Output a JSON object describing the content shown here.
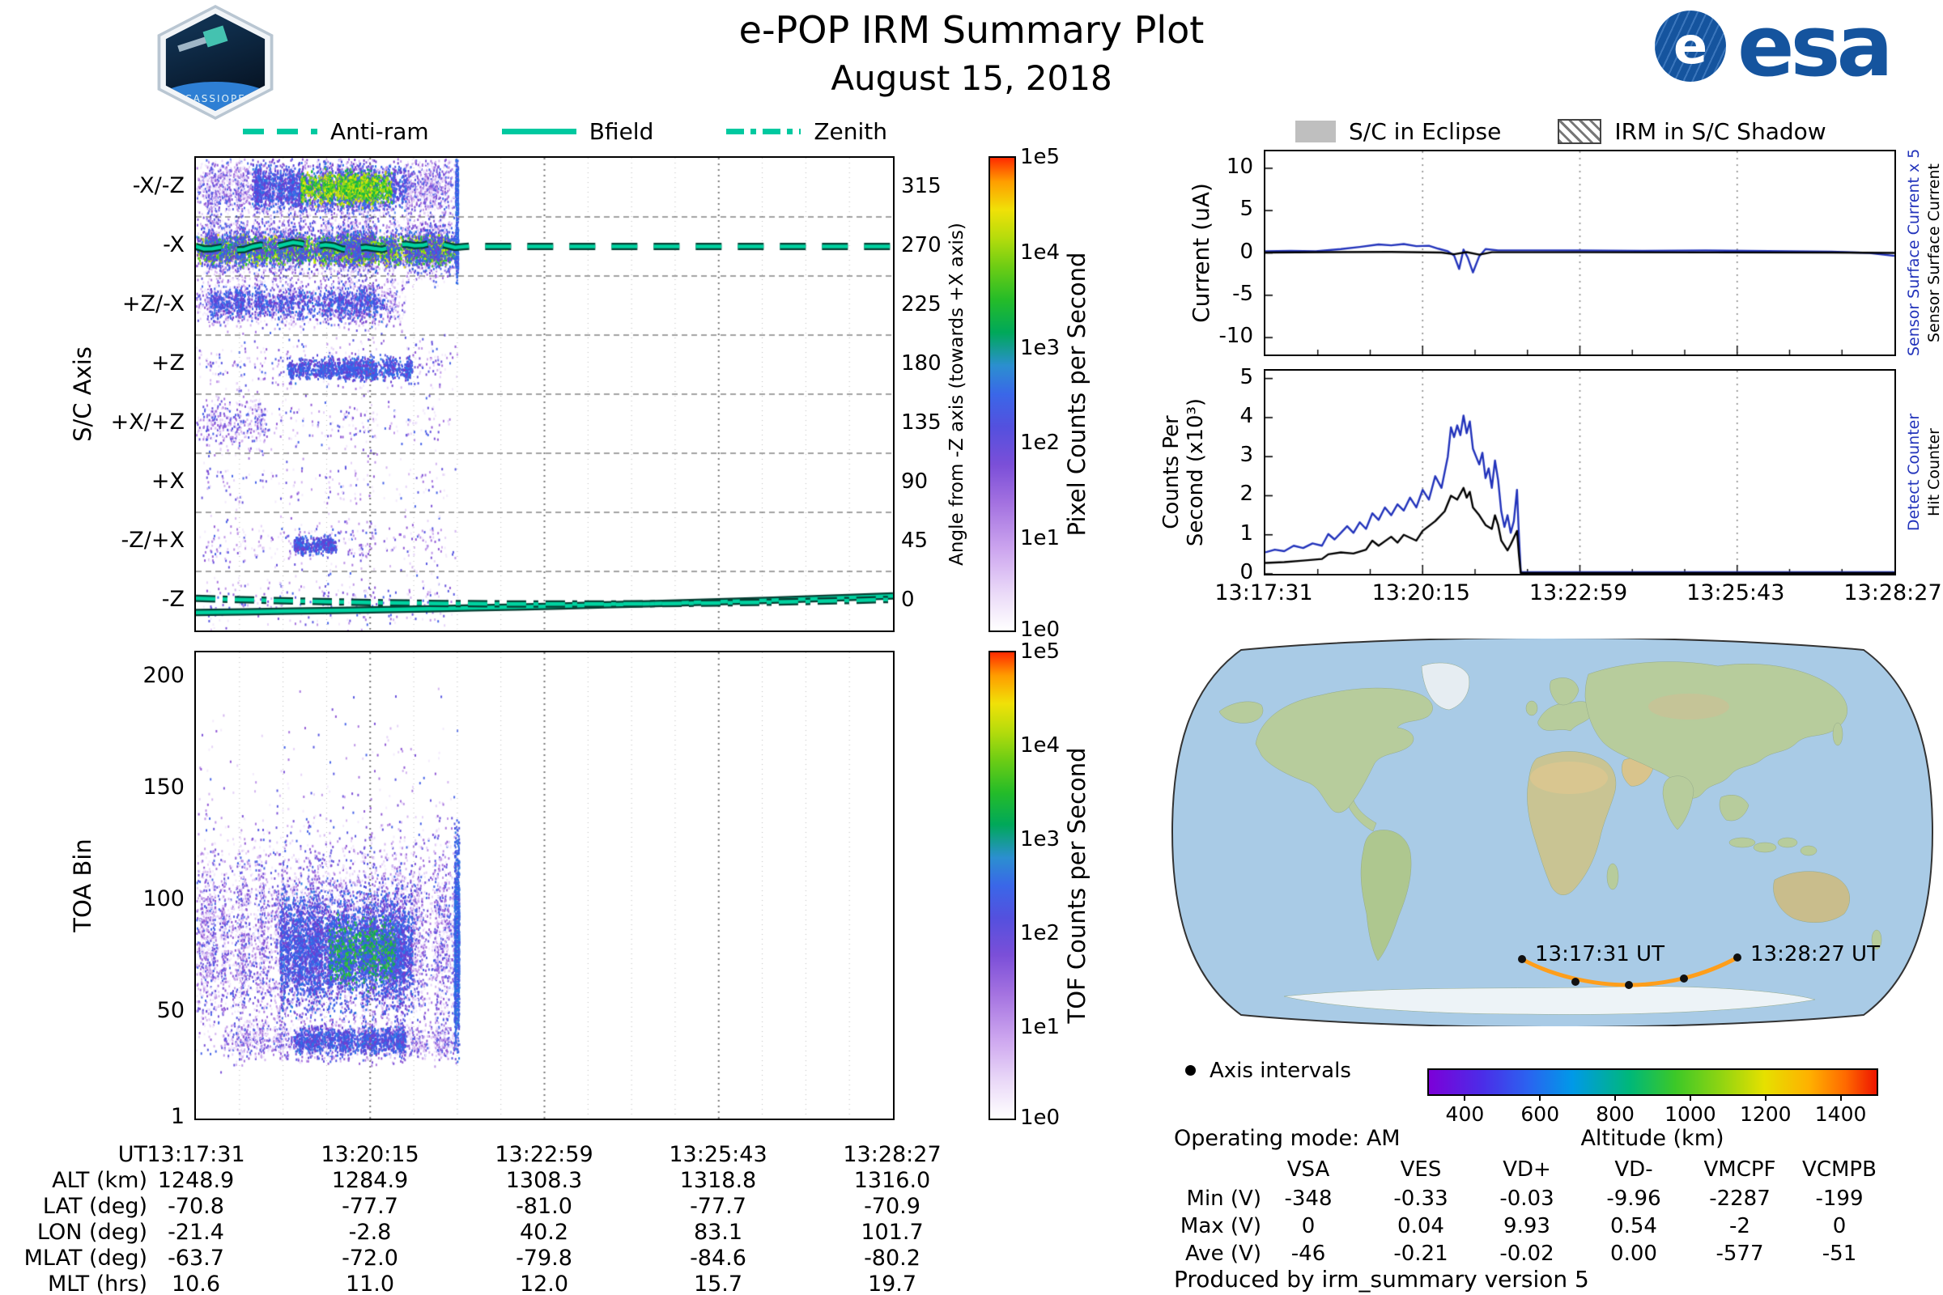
{
  "header": {
    "title": "e-POP IRM Summary Plot",
    "date": "August 15, 2018",
    "patch_text": "CASSIOPE",
    "esa_e": "e",
    "esa_text": "esa"
  },
  "colors": {
    "accent_teal": "#00c9a0",
    "track_orange": "#ff9e1b",
    "series_blue": "#2233bb",
    "series_black": "#000000",
    "eclipse_gray": "#bfbfbf"
  },
  "left_legend": [
    {
      "label": "Anti-ram",
      "style": "dashed"
    },
    {
      "label": "Bfield",
      "style": "solid"
    },
    {
      "label": "Zenith",
      "style": "dashdot"
    }
  ],
  "right_legend": {
    "eclipse": "S/C in Eclipse",
    "shadow": "IRM in S/C Shadow"
  },
  "time_ticks": [
    "13:17:31",
    "13:20:15",
    "13:22:59",
    "13:25:43",
    "13:28:27"
  ],
  "palettes": {
    "cool": [
      "#f3ebfc",
      "#e6d4f8",
      "#d4b6f0",
      "#bf97e8",
      "#a978df",
      "#935cd6",
      "#7e54d8",
      "#6b55dd",
      "#5a5ae2",
      "#4a66e8"
    ],
    "coolDark": [
      "#6a3fd0",
      "#5a48da",
      "#4a50e0",
      "#3c5ce8",
      "#2f6ae8",
      "#2b7ae0",
      "#7a40cc",
      "#3f63e6"
    ],
    "hot": [
      "#0fae4f",
      "#19bc3c",
      "#3cc829",
      "#66d41b",
      "#95dc12",
      "#c8e40c",
      "#e8e70a"
    ],
    "hotmix": [
      "#3c5ce8",
      "#2f6ae8",
      "#4a50e0",
      "#19bc3c",
      "#0fae4f",
      "#3cc829"
    ],
    "blue": [
      "#3c5ce8",
      "#2f6ae8",
      "#4a50e0",
      "#2b7ae0"
    ]
  },
  "chart_data": [
    {
      "id": "sc_axis_spectrogram",
      "type": "heatmap",
      "ylabel": "S/C Axis",
      "rows": [
        "-X/-Z",
        "-X",
        "+Z/-X",
        "+Z",
        "+X/+Z",
        "+X",
        "-Z/+X",
        "-Z"
      ],
      "right_axis": {
        "label": "Angle from -Z axis (towards +X axis)",
        "ticks": [
          "315",
          "270",
          "225",
          "180",
          "135",
          "90",
          "45",
          "0"
        ]
      },
      "colorbar": {
        "label": "Pixel Counts per Second",
        "ticks": [
          "1e5",
          "1e4",
          "1e3",
          "1e2",
          "1e1",
          "1e0"
        ]
      },
      "x_range": [
        "13:17:31",
        "13:28:27"
      ],
      "data_end_frac": 0.375,
      "overlays": [
        {
          "name": "Anti-ram",
          "style": "dashed",
          "row": "-X",
          "y_frac": 0.1875
        },
        {
          "name": "Bfield",
          "style": "solid",
          "path": [
            [
              0,
              0.962
            ],
            [
              0.55,
              0.952
            ],
            [
              1,
              0.927
            ]
          ]
        },
        {
          "name": "Zenith",
          "style": "dashdot",
          "path": [
            [
              0,
              0.932
            ],
            [
              0.5,
              0.955
            ],
            [
              1,
              0.934
            ]
          ]
        }
      ],
      "bands": [
        [
          0.0,
          0.375,
          0.0625,
          0.03,
          5200,
          "cool"
        ],
        [
          0.08,
          0.3,
          0.0625,
          0.022,
          3200,
          "coolDark"
        ],
        [
          0.15,
          0.28,
          0.0625,
          0.015,
          1700,
          "hot"
        ],
        [
          0.0,
          0.375,
          0.1875,
          0.03,
          6000,
          "cool"
        ],
        [
          0.0,
          0.375,
          0.193,
          0.013,
          5200,
          "hot"
        ],
        [
          0.0,
          0.375,
          0.19,
          0.02,
          3000,
          "coolDark"
        ],
        [
          0.0,
          0.3,
          0.3055,
          0.024,
          2600,
          "cool"
        ],
        [
          0.02,
          0.27,
          0.3055,
          0.015,
          1300,
          "coolDark"
        ],
        [
          0.0,
          0.375,
          0.4375,
          0.026,
          520,
          "cool"
        ],
        [
          0.13,
          0.31,
          0.445,
          0.011,
          1700,
          "coolDark"
        ],
        [
          0.0,
          0.1,
          0.5625,
          0.028,
          620,
          "cool"
        ],
        [
          0.1,
          0.375,
          0.5625,
          0.026,
          260,
          "cool"
        ],
        [
          0.0,
          0.375,
          0.6875,
          0.026,
          230,
          "cool"
        ],
        [
          0.0,
          0.375,
          0.8125,
          0.028,
          500,
          "cool"
        ],
        [
          0.14,
          0.2,
          0.818,
          0.009,
          750,
          "coolDark"
        ],
        [
          0.0,
          0.375,
          0.9375,
          0.028,
          400,
          "cool"
        ],
        [
          0.372,
          0.3755,
          0.0625,
          0.03,
          700,
          "blue"
        ],
        [
          0.372,
          0.3755,
          0.19,
          0.03,
          800,
          "blue"
        ]
      ]
    },
    {
      "id": "toa_spectrogram",
      "type": "heatmap",
      "ylabel": "TOA Bin",
      "yticks": [
        "200",
        "150",
        "100",
        "50",
        "1"
      ],
      "ylim": [
        1,
        211
      ],
      "colorbar": {
        "label": "TOF Counts per Second",
        "ticks": [
          "1e5",
          "1e4",
          "1e3",
          "1e2",
          "1e1",
          "1e0"
        ]
      },
      "data_end_frac": 0.375,
      "bands": [
        [
          0.0,
          0.375,
          0.62,
          0.095,
          9000,
          "cool"
        ],
        [
          0.12,
          0.31,
          0.635,
          0.055,
          5200,
          "coolDark"
        ],
        [
          0.19,
          0.285,
          0.64,
          0.03,
          1600,
          "hotmix"
        ],
        [
          0.0,
          0.375,
          0.45,
          0.15,
          700,
          "cool"
        ],
        [
          0.04,
          0.375,
          0.832,
          0.02,
          2300,
          "cool"
        ],
        [
          0.14,
          0.3,
          0.83,
          0.013,
          1300,
          "coolDark"
        ],
        [
          0.37,
          0.377,
          0.62,
          0.1,
          1000,
          "blue"
        ]
      ]
    },
    {
      "id": "current_plot",
      "type": "line",
      "ylabel": "Current (uA)",
      "ylim": [
        -12,
        12
      ],
      "yticks": [
        10,
        5,
        0,
        -5,
        -10
      ],
      "right_labels": [
        {
          "text": "Sensor Surface Current x 5",
          "color": "#2233bb"
        },
        {
          "text": "Sensor Surface Current",
          "color": "#000000"
        }
      ],
      "series": [
        {
          "name": "Sensor Surface Current x 5",
          "color": "#2233bb",
          "points": [
            [
              0,
              0.2
            ],
            [
              0.04,
              0.25
            ],
            [
              0.08,
              0.2
            ],
            [
              0.12,
              0.45
            ],
            [
              0.15,
              0.7
            ],
            [
              0.18,
              1.0
            ],
            [
              0.2,
              0.9
            ],
            [
              0.22,
              1.05
            ],
            [
              0.24,
              0.8
            ],
            [
              0.26,
              0.85
            ],
            [
              0.275,
              0.5
            ],
            [
              0.29,
              0.2
            ],
            [
              0.3,
              -0.3
            ],
            [
              0.308,
              -1.9
            ],
            [
              0.315,
              0.4
            ],
            [
              0.322,
              -0.6
            ],
            [
              0.33,
              -2.3
            ],
            [
              0.34,
              -0.4
            ],
            [
              0.35,
              0.45
            ],
            [
              0.37,
              0.3
            ],
            [
              0.42,
              0.3
            ],
            [
              0.5,
              0.28
            ],
            [
              0.6,
              0.25
            ],
            [
              0.7,
              0.28
            ],
            [
              0.8,
              0.22
            ],
            [
              0.9,
              0.15
            ],
            [
              0.96,
              0.0
            ],
            [
              1.0,
              -0.35
            ]
          ]
        },
        {
          "name": "Sensor Surface Current",
          "color": "#000000",
          "points": [
            [
              0,
              0.05
            ],
            [
              0.1,
              0.1
            ],
            [
              0.2,
              0.12
            ],
            [
              0.28,
              0.05
            ],
            [
              0.3,
              -0.15
            ],
            [
              0.32,
              0.1
            ],
            [
              0.34,
              -0.2
            ],
            [
              0.36,
              0.08
            ],
            [
              0.5,
              0.08
            ],
            [
              0.7,
              0.06
            ],
            [
              0.9,
              0.05
            ],
            [
              1,
              0.0
            ]
          ]
        }
      ]
    },
    {
      "id": "counts_plot",
      "type": "line",
      "ylabel_lines": [
        "Counts Per",
        "Second (x10³)"
      ],
      "ylim": [
        0,
        5.2
      ],
      "yticks": [
        0,
        1,
        2,
        3,
        4,
        5
      ],
      "right_labels": [
        {
          "text": "Detect Counter",
          "color": "#2233bb"
        },
        {
          "text": "Hit Counter",
          "color": "#000000"
        }
      ],
      "series": [
        {
          "name": "Detect Counter",
          "color": "#2233bb",
          "points": [
            [
              0,
              0.55
            ],
            [
              0.015,
              0.62
            ],
            [
              0.03,
              0.58
            ],
            [
              0.045,
              0.72
            ],
            [
              0.06,
              0.66
            ],
            [
              0.075,
              0.78
            ],
            [
              0.09,
              0.72
            ],
            [
              0.1,
              1.02
            ],
            [
              0.11,
              0.88
            ],
            [
              0.12,
              1.05
            ],
            [
              0.13,
              1.22
            ],
            [
              0.14,
              1.05
            ],
            [
              0.15,
              1.32
            ],
            [
              0.16,
              1.15
            ],
            [
              0.17,
              1.55
            ],
            [
              0.18,
              1.38
            ],
            [
              0.19,
              1.7
            ],
            [
              0.2,
              1.5
            ],
            [
              0.21,
              1.78
            ],
            [
              0.22,
              1.62
            ],
            [
              0.23,
              1.95
            ],
            [
              0.24,
              1.7
            ],
            [
              0.25,
              2.15
            ],
            [
              0.26,
              1.9
            ],
            [
              0.27,
              2.5
            ],
            [
              0.28,
              2.2
            ],
            [
              0.29,
              3.0
            ],
            [
              0.295,
              3.75
            ],
            [
              0.3,
              3.5
            ],
            [
              0.305,
              3.8
            ],
            [
              0.31,
              3.55
            ],
            [
              0.315,
              4.05
            ],
            [
              0.32,
              3.6
            ],
            [
              0.325,
              3.9
            ],
            [
              0.33,
              3.2
            ],
            [
              0.34,
              2.8
            ],
            [
              0.345,
              3.1
            ],
            [
              0.35,
              2.45
            ],
            [
              0.355,
              2.7
            ],
            [
              0.36,
              2.2
            ],
            [
              0.365,
              2.9
            ],
            [
              0.37,
              2.4
            ],
            [
              0.375,
              1.6
            ],
            [
              0.38,
              1.2
            ],
            [
              0.385,
              1.5
            ],
            [
              0.39,
              1.05
            ],
            [
              0.395,
              1.35
            ],
            [
              0.4,
              2.15
            ],
            [
              0.403,
              1.0
            ],
            [
              0.406,
              0.04
            ],
            [
              1.0,
              0.04
            ]
          ]
        },
        {
          "name": "Hit Counter",
          "color": "#000000",
          "points": [
            [
              0,
              0.28
            ],
            [
              0.03,
              0.3
            ],
            [
              0.06,
              0.34
            ],
            [
              0.09,
              0.38
            ],
            [
              0.1,
              0.5
            ],
            [
              0.12,
              0.55
            ],
            [
              0.14,
              0.52
            ],
            [
              0.16,
              0.62
            ],
            [
              0.17,
              0.85
            ],
            [
              0.18,
              0.72
            ],
            [
              0.2,
              0.95
            ],
            [
              0.21,
              0.8
            ],
            [
              0.22,
              1.0
            ],
            [
              0.24,
              0.85
            ],
            [
              0.25,
              1.1
            ],
            [
              0.27,
              1.35
            ],
            [
              0.285,
              1.6
            ],
            [
              0.295,
              2.0
            ],
            [
              0.305,
              1.9
            ],
            [
              0.315,
              2.2
            ],
            [
              0.32,
              1.95
            ],
            [
              0.325,
              2.1
            ],
            [
              0.33,
              1.7
            ],
            [
              0.34,
              1.5
            ],
            [
              0.35,
              1.25
            ],
            [
              0.36,
              1.15
            ],
            [
              0.365,
              1.5
            ],
            [
              0.37,
              1.25
            ],
            [
              0.375,
              0.85
            ],
            [
              0.385,
              0.6
            ],
            [
              0.39,
              0.75
            ],
            [
              0.4,
              1.1
            ],
            [
              0.403,
              0.5
            ],
            [
              0.406,
              0.02
            ],
            [
              1.0,
              0.02
            ]
          ]
        }
      ]
    }
  ],
  "map": {
    "track_start": "13:17:31 UT",
    "track_end": "13:28:27 UT",
    "axis_intervals_label": "Axis intervals",
    "altitude_bar": {
      "label": "Altitude (km)",
      "ticks": [
        400,
        600,
        800,
        1000,
        1200,
        1400
      ],
      "range": [
        300,
        1500
      ]
    }
  },
  "ephemeris": {
    "rows": [
      {
        "label": "UT",
        "values": [
          "13:17:31",
          "13:20:15",
          "13:22:59",
          "13:25:43",
          "13:28:27"
        ]
      },
      {
        "label": "ALT (km)",
        "values": [
          "1248.9",
          "1284.9",
          "1308.3",
          "1318.8",
          "1316.0"
        ]
      },
      {
        "label": "LAT (deg)",
        "values": [
          "-70.8",
          "-77.7",
          "-81.0",
          "-77.7",
          "-70.9"
        ]
      },
      {
        "label": "LON (deg)",
        "values": [
          "-21.4",
          "-2.8",
          "40.2",
          "83.1",
          "101.7"
        ]
      },
      {
        "label": "MLAT (deg)",
        "values": [
          "-63.7",
          "-72.0",
          "-79.8",
          "-84.6",
          "-80.2"
        ]
      },
      {
        "label": "MLT (hrs)",
        "values": [
          "10.6",
          "11.0",
          "12.0",
          "15.7",
          "19.7"
        ]
      }
    ]
  },
  "voltages": {
    "columns": [
      "VSA",
      "VES",
      "VD+",
      "VD-",
      "VMCPF",
      "VCMPB"
    ],
    "rows": [
      {
        "label": "Min (V)",
        "values": [
          "-348",
          "-0.33",
          "-0.03",
          "-9.96",
          "-2287",
          "-199"
        ]
      },
      {
        "label": "Max (V)",
        "values": [
          "0",
          "0.04",
          "9.93",
          "0.54",
          "-2",
          "0"
        ]
      },
      {
        "label": "Ave (V)",
        "values": [
          "-46",
          "-0.21",
          "-0.02",
          "0.00",
          "-577",
          "-51"
        ]
      }
    ]
  },
  "footer": {
    "operating_mode": "Operating mode: AM",
    "produced_by": "Produced by irm_summary version 5"
  }
}
